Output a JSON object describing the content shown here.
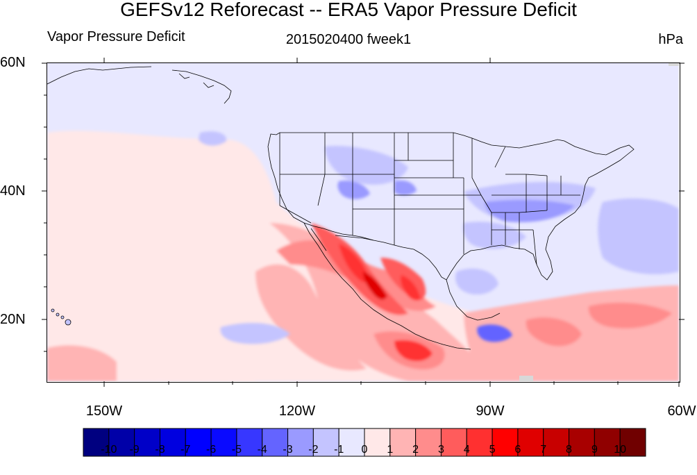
{
  "title": "GEFSv12 Reforecast -- ERA5 Vapor Pressure Deficit",
  "subtitle_left": "Vapor Pressure Deficit",
  "subtitle_center": "2015020400 fweek1",
  "subtitle_right": "hPa",
  "lat_labels": [
    "60N",
    "40N",
    "20N"
  ],
  "lon_labels": [
    "150W",
    "120W",
    "90W",
    "60W"
  ],
  "colorbar": {
    "labels": [
      "-10",
      "-9",
      "-8",
      "-7",
      "-6",
      "-5",
      "-4",
      "-3",
      "-2",
      "-1",
      "0",
      "1",
      "2",
      "3",
      "4",
      "5",
      "6",
      "7",
      "8",
      "9",
      "10"
    ],
    "colors": [
      "#000080",
      "#0000a8",
      "#0000c8",
      "#0000e0",
      "#0000ff",
      "#0a0aff",
      "#3737ff",
      "#6464ff",
      "#9a9aff",
      "#c4c4ff",
      "#e8e8ff",
      "#ffe8e8",
      "#ffb4b4",
      "#ff8c8c",
      "#ff5c5c",
      "#ff3030",
      "#ff0000",
      "#e00000",
      "#c80000",
      "#a80000",
      "#900000",
      "#700000"
    ]
  },
  "colors": {
    "base_negative": "#e8e8ff",
    "base_positive": "#ffe8e8",
    "border": "#000000",
    "missing": "#d8d8d8"
  }
}
